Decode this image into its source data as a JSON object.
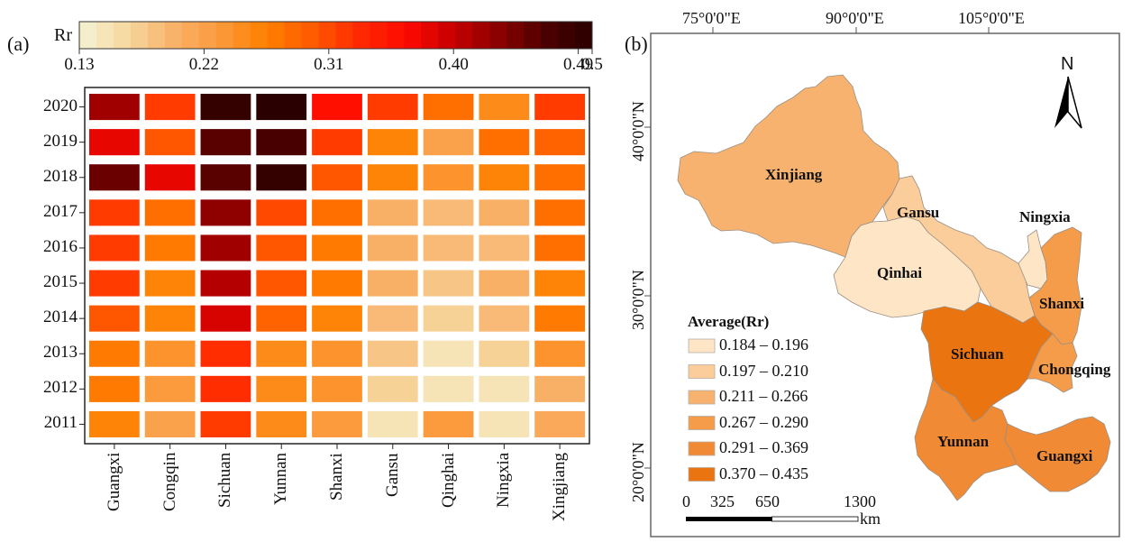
{
  "panel_a_label": "(a)",
  "panel_b_label": "(b)",
  "chart_data": [
    {
      "type": "heatmap",
      "title": "",
      "colorbar": {
        "label": "Rr",
        "range": [
          0.13,
          0.5
        ],
        "ticks": [
          "0.13",
          "0.22",
          "0.31",
          "0.40",
          "0.49",
          "0.5"
        ],
        "tick_values": [
          0.13,
          0.22,
          0.31,
          0.4,
          0.49,
          0.5
        ],
        "colors": [
          "#f5f3d6",
          "#f7d9a0",
          "#f8b26a",
          "#fb9a3c",
          "#ff8000",
          "#ff5a00",
          "#ff2a00",
          "#ff0a00",
          "#c80000",
          "#8a0000",
          "#4d0000",
          "#2a0000"
        ]
      },
      "x_categories": [
        "Guangxi",
        "Congqin",
        "Sichuan",
        "Yunnan",
        "Shanxi",
        "Gansu",
        "Qinghai",
        "Ningxia",
        "Xingjiang"
      ],
      "y_categories": [
        "2020",
        "2019",
        "2018",
        "2017",
        "2016",
        "2015",
        "2014",
        "2013",
        "2012",
        "2011"
      ],
      "values": [
        [
          0.42,
          0.32,
          0.49,
          0.5,
          0.36,
          0.32,
          0.28,
          0.25,
          0.32
        ],
        [
          0.38,
          0.3,
          0.46,
          0.47,
          0.32,
          0.26,
          0.22,
          0.28,
          0.29
        ],
        [
          0.45,
          0.38,
          0.46,
          0.49,
          0.3,
          0.26,
          0.24,
          0.26,
          0.28
        ],
        [
          0.32,
          0.28,
          0.43,
          0.31,
          0.28,
          0.2,
          0.19,
          0.2,
          0.28
        ],
        [
          0.32,
          0.27,
          0.42,
          0.3,
          0.27,
          0.2,
          0.19,
          0.19,
          0.28
        ],
        [
          0.32,
          0.26,
          0.41,
          0.3,
          0.27,
          0.2,
          0.18,
          0.2,
          0.26
        ],
        [
          0.3,
          0.26,
          0.39,
          0.29,
          0.26,
          0.19,
          0.17,
          0.19,
          0.27
        ],
        [
          0.27,
          0.24,
          0.33,
          0.25,
          0.24,
          0.18,
          0.15,
          0.17,
          0.24
        ],
        [
          0.27,
          0.23,
          0.33,
          0.25,
          0.24,
          0.17,
          0.15,
          0.15,
          0.2
        ],
        [
          0.26,
          0.22,
          0.32,
          0.25,
          0.23,
          0.15,
          0.23,
          0.15,
          0.21
        ]
      ]
    },
    {
      "type": "choropleth-map",
      "longitude_labels": [
        "75°0'0\"E",
        "90°0'0\"E",
        "105°0'0\"E"
      ],
      "latitude_labels": [
        "40°0'0\"N",
        "30°0'0\"N",
        "20°0'0\"N"
      ],
      "north_arrow_label": "N",
      "regions": [
        {
          "name": "Xinjiang",
          "class": 2
        },
        {
          "name": "Gansu",
          "class": 1
        },
        {
          "name": "Qinhai",
          "class": 0
        },
        {
          "name": "Ningxia",
          "class": 0
        },
        {
          "name": "Shanxi",
          "class": 3
        },
        {
          "name": "Sichuan",
          "class": 5
        },
        {
          "name": "Chongqing",
          "class": 3
        },
        {
          "name": "Yunnan",
          "class": 4
        },
        {
          "name": "Guangxi",
          "class": 4
        }
      ],
      "legend": {
        "title": "Average(Rr)",
        "items": [
          {
            "label": "0.184 – 0.196",
            "color": "#fde5c6"
          },
          {
            "label": "0.197 – 0.210",
            "color": "#fbcd9b"
          },
          {
            "label": "0.211 – 0.266",
            "color": "#f8b26f"
          },
          {
            "label": "0.267 – 0.290",
            "color": "#f59c4b"
          },
          {
            "label": "0.291 – 0.369",
            "color": "#f08a34"
          },
          {
            "label": "0.370 – 0.435",
            "color": "#ea7410"
          }
        ]
      },
      "scale_bar": {
        "ticks": [
          "0",
          "325",
          "650",
          "1300"
        ],
        "unit": "km"
      }
    }
  ]
}
